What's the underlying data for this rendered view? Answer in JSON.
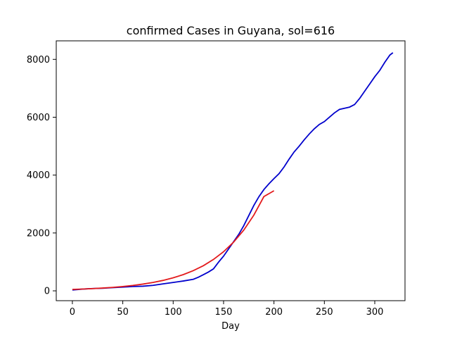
{
  "chart_data": {
    "type": "line",
    "title": "confirmed Cases in Guyana, sol=616",
    "xlabel": "Day",
    "ylabel": "",
    "xlim": [
      -16,
      330
    ],
    "ylim": [
      -340,
      8640
    ],
    "xticks": [
      0,
      50,
      100,
      150,
      200,
      250,
      300
    ],
    "yticks": [
      0,
      2000,
      4000,
      6000,
      8000
    ],
    "grid": false,
    "series": [
      {
        "color": "#0000cc",
        "x": [
          0,
          10,
          20,
          30,
          40,
          50,
          60,
          70,
          80,
          90,
          100,
          110,
          120,
          125,
          130,
          135,
          140,
          145,
          150,
          155,
          160,
          165,
          170,
          175,
          180,
          185,
          190,
          195,
          200,
          205,
          210,
          215,
          220,
          225,
          230,
          235,
          240,
          245,
          250,
          255,
          260,
          265,
          270,
          275,
          280,
          285,
          290,
          295,
          300,
          305,
          310,
          315,
          318
        ],
        "y": [
          30,
          60,
          80,
          90,
          110,
          130,
          150,
          160,
          190,
          240,
          290,
          340,
          400,
          470,
          560,
          650,
          760,
          990,
          1200,
          1450,
          1700,
          1950,
          2250,
          2600,
          2950,
          3250,
          3500,
          3700,
          3880,
          4050,
          4280,
          4550,
          4800,
          5000,
          5220,
          5420,
          5600,
          5750,
          5850,
          6000,
          6150,
          6270,
          6310,
          6350,
          6440,
          6650,
          6900,
          7150,
          7400,
          7620,
          7900,
          8150,
          8230
        ]
      },
      {
        "color": "#e31a1c",
        "x": [
          0,
          10,
          20,
          30,
          40,
          50,
          60,
          70,
          80,
          90,
          100,
          110,
          120,
          130,
          140,
          150,
          160,
          170,
          180,
          190,
          200
        ],
        "y": [
          50,
          62,
          77,
          96,
          120,
          150,
          187,
          233,
          290,
          361,
          450,
          561,
          699,
          870,
          1085,
          1352,
          1685,
          2098,
          2615,
          3258,
          3460
        ]
      }
    ]
  }
}
